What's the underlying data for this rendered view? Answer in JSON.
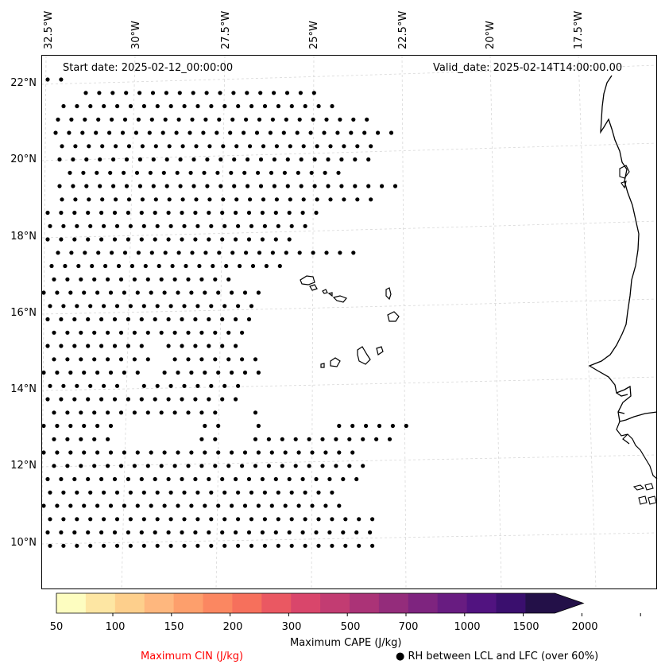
{
  "header": {
    "start_date": "Start date: 2025-02-12_00:00:00",
    "valid_date": "Valid_date: 2025-02-14T14:00:00.00"
  },
  "axes": {
    "longitude_labels": [
      "32.5°W",
      "30°W",
      "27.5°W",
      "25°W",
      "22.5°W",
      "20°W",
      "17.5°W"
    ],
    "latitude_labels": [
      "22°N",
      "20°N",
      "18°N",
      "16°N",
      "14°N",
      "12°N",
      "10°N"
    ]
  },
  "colorbar": {
    "title": "Maximum CAPE (J/kg)",
    "tick_labels": [
      "50",
      "100",
      "150",
      "200",
      "300",
      "500",
      "700",
      "1000",
      "1500",
      "2000"
    ],
    "colors": [
      "#fdfdc0",
      "#fde6a3",
      "#fdcf8c",
      "#feb77e",
      "#fd9f6c",
      "#fb8761",
      "#f6705c",
      "#ea5862",
      "#d9466b",
      "#c23c72",
      "#ab3377",
      "#942c7b",
      "#7e247f",
      "#681c81",
      "#511380",
      "#3a0f6e",
      "#231048"
    ]
  },
  "legend": {
    "cin_label": "Maximum CIN (J/kg)",
    "cin_color": "#ff0000",
    "rh_label": "RH between LCL and LFC (over 60%)",
    "rh_symbol": "●"
  },
  "map": {
    "extent_lon": [
      -32.5,
      -15.0
    ],
    "extent_lat": [
      9.0,
      22.5
    ],
    "dot_grid_spacing_deg": 0.36
  }
}
